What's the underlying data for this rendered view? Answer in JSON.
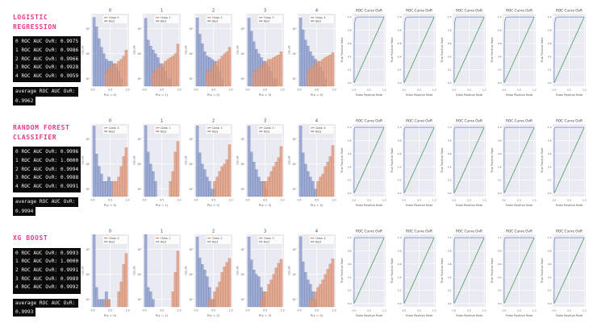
{
  "colors": {
    "heading": "#e23a8b",
    "panel_box_bg": "#0a0a0a",
    "panel_box_text": "#f2f2f2",
    "plot_bg": "#eaeaf2",
    "grid": "#ffffff",
    "rest_bar_fill": "#8b9cca",
    "rest_bar_edge": "#6478ad",
    "class_bar_fill": "#dd9a7c",
    "class_bar_edge": "#c57a57",
    "roc_line": "#7089ba",
    "chance_line": "#4d9e64",
    "plot_text": "#555555",
    "title_text": "#3a3a3a"
  },
  "models": [
    {
      "name_line1": "LOGISTIC",
      "name_line2": "REGRESSION",
      "auc_lines": [
        "0 ROC AUC OvR: 0.9975",
        "1 ROC AUC OvR: 0.9986",
        "2 ROC AUC OvR: 0.9966",
        "3 ROC AUC OvR: 0.9928",
        "4 ROC AUC OvR: 0.9959"
      ],
      "avg_label": "average ROC AUC OvR:",
      "avg_value": "0.9962"
    },
    {
      "name_line1": "RANDOM FOREST",
      "name_line2": "CLASSIFIER",
      "auc_lines": [
        "0 ROC AUC OvR: 0.9996",
        "1 ROC AUC OvR: 1.0000",
        "2 ROC AUC OvR: 0.9994",
        "3 ROC AUC OvR: 0.9988",
        "4 ROC AUC OvR: 0.9991"
      ],
      "avg_label": "average ROC AUC OvR:",
      "avg_value": "0.9994"
    },
    {
      "name_line1": "XG BOOST",
      "name_line2": "",
      "auc_lines": [
        "0 ROC AUC OvR: 0.9993",
        "1 ROC AUC OvR: 1.0000",
        "2 ROC AUC OvR: 0.9991",
        "3 ROC AUC OvR: 0.9989",
        "4 ROC AUC OvR: 0.9992"
      ],
      "avg_label": "average ROC AUC OvR:",
      "avg_value": "0.9993"
    }
  ],
  "chart_data": {
    "type": "mixed",
    "hist_config": {
      "type": "histogram",
      "bins": 14,
      "range": [
        0,
        1
      ],
      "yscale": "log",
      "ylabel": "Count",
      "xlabel_prefix": "P(x = ",
      "xlabel_suffix": ")",
      "x_ticks": [
        "0.0",
        "0.5",
        "1.0"
      ],
      "y_ticks": [
        "10²",
        "10¹",
        "10⁰"
      ],
      "y_tick_values": [
        100,
        10,
        1
      ],
      "legend_class_prefix": "Class: ",
      "legend_rest": "Rest",
      "titles": [
        "0",
        "1",
        "2",
        "3",
        "4"
      ]
    },
    "roc_config": {
      "type": "line",
      "title": "ROC Curve OvR",
      "xlabel": "False Positive Rate",
      "ylabel": "True Positive Rate",
      "x_ticks": [
        "0.0",
        "0.5",
        "1.0"
      ],
      "x_tick_values": [
        0,
        0.5,
        1
      ],
      "y_ticks": [
        "0.0",
        "0.2",
        "0.4",
        "0.6",
        "0.8",
        "1.0"
      ],
      "y_tick_values": [
        0,
        0.2,
        0.4,
        0.6,
        0.8,
        1
      ],
      "xlim": [
        -0.05,
        1.05
      ],
      "ylim": [
        -0.05,
        1.05
      ],
      "chance_line": [
        [
          0,
          0
        ],
        [
          1,
          1
        ]
      ]
    },
    "rows": [
      {
        "model": "Logistic Regression",
        "roc_auc_ovr": {
          "0": 0.9975,
          "1": 0.9986,
          "2": 0.9966,
          "3": 0.9928,
          "4": 0.9959,
          "average": 0.9962
        },
        "hists": [
          {
            "class": "0",
            "rest": [
              280,
              120,
              40,
              18,
              10,
              6,
              5,
              5,
              4,
              3,
              2,
              1,
              0,
              0
            ],
            "class_counts": [
              0,
              0,
              0,
              0,
              0,
              2,
              3,
              3,
              4,
              4,
              5,
              6,
              8,
              14
            ]
          },
          {
            "class": "1",
            "rest": [
              260,
              35,
              20,
              14,
              10,
              7,
              4,
              3,
              2,
              1,
              1,
              0,
              0,
              0
            ],
            "class_counts": [
              0,
              0,
              0,
              2,
              2,
              3,
              3,
              4,
              5,
              6,
              7,
              8,
              10,
              24
            ]
          },
          {
            "class": "2",
            "rest": [
              270,
              60,
              25,
              12,
              8,
              7,
              6,
              5,
              3,
              2,
              1,
              0,
              0,
              0
            ],
            "class_counts": [
              0,
              0,
              0,
              0,
              2,
              2,
              3,
              4,
              5,
              6,
              8,
              10,
              12,
              18
            ]
          },
          {
            "class": "3",
            "rest": [
              265,
              80,
              30,
              15,
              10,
              7,
              5,
              4,
              3,
              2,
              1,
              1,
              0,
              0
            ],
            "class_counts": [
              0,
              0,
              2,
              2,
              3,
              3,
              4,
              5,
              6,
              6,
              7,
              8,
              9,
              12
            ]
          },
          {
            "class": "4",
            "rest": [
              270,
              90,
              35,
              20,
              12,
              8,
              6,
              4,
              3,
              2,
              1,
              0,
              0,
              0
            ],
            "class_counts": [
              0,
              0,
              0,
              2,
              3,
              3,
              4,
              5,
              5,
              6,
              7,
              8,
              9,
              11
            ]
          }
        ],
        "roc_points": [
          [
            0,
            0
          ],
          [
            0.004,
            0.55
          ],
          [
            0.01,
            0.8
          ],
          [
            0.02,
            0.92
          ],
          [
            0.05,
            0.985
          ],
          [
            0.12,
            1
          ],
          [
            1,
            1
          ]
        ]
      },
      {
        "model": "Random Forest Classifier",
        "roc_auc_ovr": {
          "0": 0.9996,
          "1": 1.0,
          "2": 0.9994,
          "3": 0.9988,
          "4": 0.9991,
          "average": 0.9994
        },
        "hists": [
          {
            "class": "0",
            "rest": [
              330,
              25,
              8,
              4,
              2,
              2,
              3,
              2,
              0,
              0,
              0,
              0,
              0,
              0
            ],
            "class_counts": [
              0,
              0,
              0,
              0,
              0,
              0,
              0,
              0,
              2,
              2,
              3,
              8,
              20,
              45
            ]
          },
          {
            "class": "1",
            "rest": [
              345,
              30,
              10,
              5,
              2,
              0,
              0,
              0,
              0,
              0,
              0,
              0,
              0,
              0
            ],
            "class_counts": [
              0,
              0,
              0,
              0,
              0,
              0,
              0,
              0,
              0,
              0,
              2,
              5,
              30,
              80
            ]
          },
          {
            "class": "2",
            "rest": [
              335,
              28,
              10,
              6,
              3,
              2,
              1,
              1,
              0,
              0,
              0,
              0,
              0,
              0
            ],
            "class_counts": [
              0,
              0,
              0,
              0,
              0,
              0,
              0,
              2,
              3,
              5,
              8,
              10,
              15,
              60
            ]
          },
          {
            "class": "3",
            "rest": [
              330,
              30,
              12,
              6,
              3,
              2,
              2,
              1,
              0,
              0,
              0,
              0,
              0,
              0
            ],
            "class_counts": [
              0,
              0,
              0,
              0,
              0,
              0,
              2,
              2,
              3,
              5,
              8,
              12,
              18,
              50
            ]
          },
          {
            "class": "4",
            "rest": [
              338,
              28,
              10,
              5,
              3,
              2,
              1,
              0,
              0,
              0,
              0,
              0,
              0,
              0
            ],
            "class_counts": [
              0,
              0,
              0,
              0,
              0,
              0,
              0,
              2,
              3,
              4,
              8,
              12,
              20,
              55
            ]
          }
        ],
        "roc_points": [
          [
            0,
            0
          ],
          [
            0.002,
            0.88
          ],
          [
            0.006,
            0.97
          ],
          [
            0.015,
            0.995
          ],
          [
            0.04,
            1
          ],
          [
            1,
            1
          ]
        ]
      },
      {
        "model": "XG Boost",
        "roc_auc_ovr": {
          "0": 0.9993,
          "1": 1.0,
          "2": 0.9991,
          "3": 0.9989,
          "4": 0.9992,
          "average": 0.9993
        },
        "hists": [
          {
            "class": "0",
            "rest": [
              385,
              3,
              1,
              1,
              1,
              2,
              1,
              0,
              0,
              0,
              0,
              0,
              0,
              0
            ],
            "class_counts": [
              0,
              0,
              0,
              0,
              0,
              1,
              1,
              0,
              0,
              0,
              2,
              5,
              25,
              68
            ]
          },
          {
            "class": "1",
            "rest": [
              392,
              3,
              2,
              1,
              0,
              0,
              0,
              0,
              0,
              0,
              0,
              0,
              0,
              0
            ],
            "class_counts": [
              0,
              0,
              0,
              0,
              0,
              0,
              0,
              0,
              0,
              0,
              0,
              2,
              12,
              85
            ]
          },
          {
            "class": "2",
            "rest": [
              310,
              45,
              25,
              15,
              8,
              3,
              1,
              1,
              0,
              0,
              0,
              0,
              0,
              0
            ],
            "class_counts": [
              0,
              0,
              0,
              0,
              0,
              1,
              1,
              2,
              3,
              5,
              12,
              20,
              30,
              44
            ]
          },
          {
            "class": "3",
            "rest": [
              315,
              38,
              15,
              10,
              8,
              3,
              2,
              0,
              0,
              0,
              0,
              0,
              0,
              0
            ],
            "class_counts": [
              0,
              0,
              0,
              0,
              0,
              1,
              2,
              2,
              4,
              6,
              10,
              18,
              28,
              40
            ]
          },
          {
            "class": "4",
            "rest": [
              322,
              32,
              12,
              6,
              4,
              2,
              1,
              0,
              0,
              0,
              0,
              0,
              0,
              0
            ],
            "class_counts": [
              0,
              0,
              0,
              0,
              1,
              1,
              2,
              3,
              4,
              6,
              10,
              16,
              26,
              42
            ]
          }
        ],
        "roc_points": [
          [
            0,
            0
          ],
          [
            0.002,
            0.86
          ],
          [
            0.006,
            0.96
          ],
          [
            0.015,
            0.995
          ],
          [
            0.04,
            1
          ],
          [
            1,
            1
          ]
        ]
      }
    ]
  }
}
